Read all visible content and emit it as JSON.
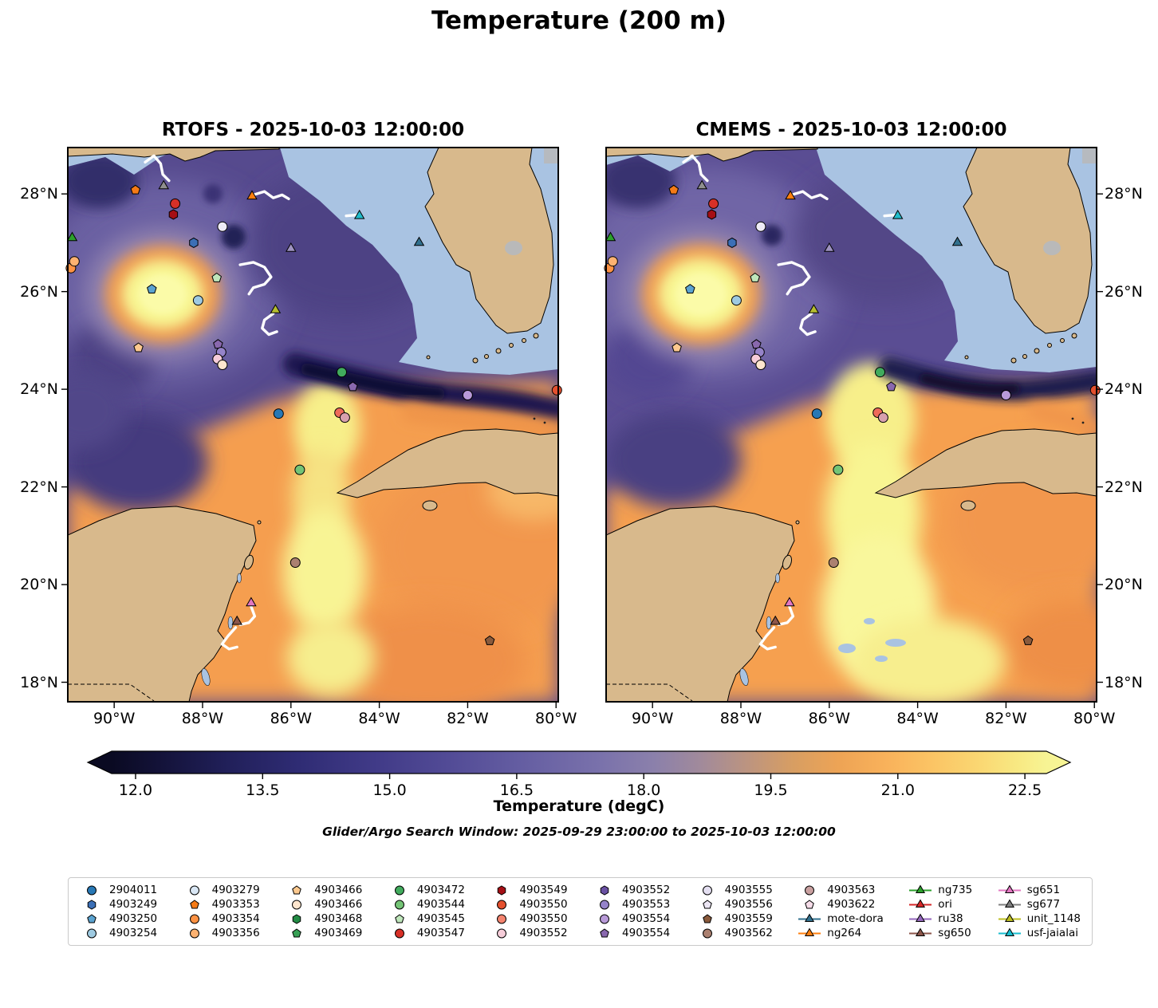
{
  "title": "Temperature (200 m)",
  "panels": [
    {
      "id": "rtofs",
      "title": "RTOFS - 2025-10-03 12:00:00"
    },
    {
      "id": "cmems",
      "title": "CMEMS - 2025-10-03 12:00:00"
    }
  ],
  "axes": {
    "lat_labels": [
      "28°N",
      "26°N",
      "24°N",
      "22°N",
      "20°N",
      "18°N"
    ],
    "lat_values": [
      28,
      26,
      24,
      22,
      20,
      18
    ],
    "lon_labels": [
      "90°W",
      "88°W",
      "86°W",
      "84°W",
      "82°W",
      "80°W"
    ],
    "lon_values": [
      -90,
      -88,
      -86,
      -84,
      -82,
      -80
    ]
  },
  "colorbar": {
    "label": "Temperature (degC)",
    "tick_labels": [
      "12.0",
      "13.5",
      "15.0",
      "16.5",
      "18.0",
      "19.5",
      "21.0",
      "22.5"
    ],
    "tick_values": [
      12,
      13.5,
      15,
      16.5,
      18,
      19.5,
      21,
      22.5
    ],
    "min": 12,
    "max": 22.5
  },
  "search_window": "Glider/Argo Search Window: 2025-09-29 23:00:00 to 2025-10-03 12:00:00",
  "map_colors": {
    "land": "#d8b98c",
    "masked_ocean": "#a9c3e2",
    "lake": "#b9b9b9",
    "glider_track": "#ffffff",
    "cold": "#10102e",
    "mid": "#6f68a6",
    "warm": "#f5a055",
    "hot": "#f7f494"
  },
  "legend": [
    {
      "label": "2904011",
      "shape": "circle",
      "color": "#2878b5"
    },
    {
      "label": "4903249",
      "shape": "hexagon",
      "color": "#3b6fb6"
    },
    {
      "label": "4903250",
      "shape": "pentagon",
      "color": "#5ba3d0"
    },
    {
      "label": "4903254",
      "shape": "circle",
      "color": "#9ecae1"
    },
    {
      "label": "4903279",
      "shape": "circle",
      "color": "#d9e7f5"
    },
    {
      "label": "4903353",
      "shape": "pentagon",
      "color": "#f57b17"
    },
    {
      "label": "4903354",
      "shape": "circle",
      "color": "#fd9243"
    },
    {
      "label": "4903356",
      "shape": "circle",
      "color": "#fdb271"
    },
    {
      "label": "4903466",
      "shape": "pentagon",
      "color": "#fdc98f"
    },
    {
      "label": "4903466",
      "shape": "circle",
      "color": "#fee6ce"
    },
    {
      "label": "4903468",
      "shape": "hexagon",
      "color": "#238b45"
    },
    {
      "label": "4903469",
      "shape": "pentagon",
      "color": "#37a055"
    },
    {
      "label": "4903472",
      "shape": "circle",
      "color": "#41ab5d"
    },
    {
      "label": "4903544",
      "shape": "circle",
      "color": "#74c476"
    },
    {
      "label": "4903545",
      "shape": "pentagon",
      "color": "#bfe6bb"
    },
    {
      "label": "4903547",
      "shape": "circle",
      "color": "#d73027"
    },
    {
      "label": "4903549",
      "shape": "hexagon",
      "color": "#a50f15"
    },
    {
      "label": "4903550",
      "shape": "circle",
      "color": "#e4502e"
    },
    {
      "label": "4903550",
      "shape": "circle",
      "color": "#f4846f"
    },
    {
      "label": "4903552",
      "shape": "circle",
      "color": "#f6cdd9"
    },
    {
      "label": "4903552",
      "shape": "hexagon",
      "color": "#6a51a3"
    },
    {
      "label": "4903553",
      "shape": "circle",
      "color": "#9583c9"
    },
    {
      "label": "4903554",
      "shape": "circle",
      "color": "#b89ad8"
    },
    {
      "label": "4903554",
      "shape": "pentagon",
      "color": "#8968ae"
    },
    {
      "label": "4903555",
      "shape": "circle",
      "color": "#e4dff1"
    },
    {
      "label": "4903556",
      "shape": "pentagon",
      "color": "#ece6f4"
    },
    {
      "label": "4903559",
      "shape": "pentagon",
      "color": "#8a5a3c"
    },
    {
      "label": "4903562",
      "shape": "circle",
      "color": "#ab8070"
    },
    {
      "label": "4903563",
      "shape": "circle",
      "color": "#c9a0a0"
    },
    {
      "label": "4903622",
      "shape": "pentagon",
      "color": "#f6dde9"
    },
    {
      "label": "mote-dora",
      "shape": "triangle-line",
      "color": "#31708e"
    },
    {
      "label": "ng264",
      "shape": "triangle-line",
      "color": "#ff7f0e"
    },
    {
      "label": "ng735",
      "shape": "triangle-line",
      "color": "#2ca02c"
    },
    {
      "label": "ori",
      "shape": "triangle-line",
      "color": "#d62728"
    },
    {
      "label": "ru38",
      "shape": "triangle-line",
      "color": "#9467bd"
    },
    {
      "label": "sg650",
      "shape": "triangle-line",
      "color": "#8c564b"
    },
    {
      "label": "sg651",
      "shape": "triangle-line",
      "color": "#e377c2"
    },
    {
      "label": "sg677",
      "shape": "triangle-line",
      "color": "#7f7f7f"
    },
    {
      "label": "unit_1148",
      "shape": "triangle-line",
      "color": "#bcbd22"
    },
    {
      "label": "usf-jaialai",
      "shape": "triangle-line",
      "color": "#17becf"
    }
  ],
  "chart_data": {
    "type": "heatmap",
    "variable": "Temperature",
    "depth": "200 m",
    "units": "degC",
    "value_range": [
      12,
      22.5
    ],
    "extent": {
      "lon": [
        -91.05,
        -79.95
      ],
      "lat": [
        17.6,
        28.95
      ]
    },
    "panels": [
      "RTOFS - 2025-10-03 12:00:00",
      "CMEMS - 2025-10-03 12:00:00"
    ],
    "features": [
      "warm eddy ~22.5 degC centered near 88.9W 26N in both models",
      "cold band ~12-13 degC along Florida Straits near 24N from 86W to 80W",
      "warm tongue ~21-22.5 degC through Yucatan Channel toward central Gulf",
      "cool purple water ~14-16 degC over northern and western Gulf"
    ],
    "markers": [
      {
        "label": "4903353",
        "shape": "pentagon",
        "color": "#f57b17",
        "lon": -89.52,
        "lat": 28.08
      },
      {
        "label": "sg677",
        "shape": "triangle",
        "color": "#8f8f8f",
        "lon": -88.88,
        "lat": 28.16
      },
      {
        "label": "4903547",
        "shape": "circle",
        "color": "#d73027",
        "lon": -88.62,
        "lat": 27.8
      },
      {
        "label": "4903549",
        "shape": "hexagon",
        "color": "#a50f15",
        "lon": -88.66,
        "lat": 27.58
      },
      {
        "label": "ng264",
        "shape": "triangle",
        "color": "#ff7f0e",
        "lon": -86.88,
        "lat": 27.95
      },
      {
        "label": "usf-jaialai",
        "shape": "triangle",
        "color": "#22bccb",
        "lon": -84.45,
        "lat": 27.55
      },
      {
        "label": "4903555",
        "shape": "circle",
        "color": "#eeebf6",
        "lon": -87.55,
        "lat": 27.33
      },
      {
        "label": "ng735",
        "shape": "triangle",
        "color": "#2ca02c",
        "lon": -90.95,
        "lat": 27.1
      },
      {
        "label": "4903249",
        "shape": "hexagon",
        "color": "#3b6fb6",
        "lon": -88.2,
        "lat": 27.0
      },
      {
        "label": "ru38",
        "shape": "triangle",
        "color": "#9e93c0",
        "lon": -86.0,
        "lat": 26.88
      },
      {
        "label": "mote-dora",
        "shape": "triangle",
        "color": "#31708e",
        "lon": -83.1,
        "lat": 27.0
      },
      {
        "label": "4903354",
        "shape": "circle",
        "color": "#fd9243",
        "lon": -90.98,
        "lat": 26.48
      },
      {
        "label": "4903356",
        "shape": "circle",
        "color": "#fdb271",
        "lon": -90.9,
        "lat": 26.62
      },
      {
        "label": "4903545",
        "shape": "pentagon",
        "color": "#bfe6bb",
        "lon": -87.68,
        "lat": 26.28
      },
      {
        "label": "4903250",
        "shape": "pentagon",
        "color": "#5ba3d0",
        "lon": -89.15,
        "lat": 26.05
      },
      {
        "label": "4903254",
        "shape": "circle",
        "color": "#9ecae1",
        "lon": -88.1,
        "lat": 25.82
      },
      {
        "label": "unit_1148",
        "shape": "triangle",
        "color": "#b5bd2f",
        "lon": -86.35,
        "lat": 25.62
      },
      {
        "label": "4903466",
        "shape": "pentagon",
        "color": "#fdc98f",
        "lon": -89.45,
        "lat": 24.85
      },
      {
        "label": "4903554",
        "shape": "pentagon",
        "color": "#8968ae",
        "lon": -87.65,
        "lat": 24.92
      },
      {
        "label": "4903553",
        "shape": "circle",
        "color": "#9583c9",
        "lon": -87.58,
        "lat": 24.76
      },
      {
        "label": "4903552",
        "shape": "circle",
        "color": "#f6cdd9",
        "lon": -87.66,
        "lat": 24.62
      },
      {
        "label": "4903466",
        "shape": "circle",
        "color": "#fee6ce",
        "lon": -87.55,
        "lat": 24.5
      },
      {
        "label": "4903472",
        "shape": "circle",
        "color": "#41ab5d",
        "lon": -84.85,
        "lat": 24.35
      },
      {
        "label": "4903554",
        "shape": "pentagon",
        "color": "#8968ae",
        "lon": -84.6,
        "lat": 24.05
      },
      {
        "label": "2904011",
        "shape": "circle",
        "color": "#2878b5",
        "lon": -86.28,
        "lat": 23.5
      },
      {
        "label": "4903550",
        "shape": "circle",
        "color": "#ef6a5a",
        "lon": -84.9,
        "lat": 23.52
      },
      {
        "label": "4903563",
        "shape": "circle",
        "color": "#d8a0ae",
        "lon": -84.78,
        "lat": 23.42
      },
      {
        "label": "4903554",
        "shape": "circle",
        "color": "#b89ad8",
        "lon": -82.0,
        "lat": 23.88
      },
      {
        "label": "4903550",
        "shape": "circle",
        "color": "#e4502e",
        "lon": -79.98,
        "lat": 23.98
      },
      {
        "label": "4903544",
        "shape": "circle",
        "color": "#74c476",
        "lon": -85.8,
        "lat": 22.35
      },
      {
        "label": "4903562",
        "shape": "circle",
        "color": "#ab8070",
        "lon": -85.9,
        "lat": 20.45
      },
      {
        "label": "sg651",
        "shape": "triangle",
        "color": "#e377c2",
        "lon": -86.9,
        "lat": 19.62
      },
      {
        "label": "sg650",
        "shape": "triangle",
        "color": "#8c564b",
        "lon": -87.22,
        "lat": 19.24
      },
      {
        "label": "4903559",
        "shape": "pentagon",
        "color": "#8a5a3c",
        "lon": -81.5,
        "lat": 18.85
      }
    ],
    "glider_tracks": [
      {
        "name": "sg677",
        "points": [
          [
            -89.3,
            28.65
          ],
          [
            -89.1,
            28.78
          ],
          [
            -88.95,
            28.62
          ],
          [
            -88.9,
            28.4
          ],
          [
            -88.76,
            28.27
          ]
        ]
      },
      {
        "name": "ng264",
        "points": [
          [
            -86.85,
            27.98
          ],
          [
            -86.6,
            28.05
          ],
          [
            -86.4,
            27.92
          ],
          [
            -86.2,
            27.98
          ],
          [
            -86.05,
            27.9
          ]
        ]
      },
      {
        "name": "ru38",
        "points": [
          [
            -87.15,
            26.55
          ],
          [
            -86.85,
            26.6
          ],
          [
            -86.6,
            26.5
          ],
          [
            -86.45,
            26.3
          ],
          [
            -86.6,
            26.15
          ],
          [
            -86.85,
            26.08
          ],
          [
            -86.95,
            25.95
          ]
        ]
      },
      {
        "name": "unit_1148",
        "points": [
          [
            -86.4,
            25.55
          ],
          [
            -86.6,
            25.42
          ],
          [
            -86.65,
            25.25
          ],
          [
            -86.5,
            25.12
          ],
          [
            -86.32,
            25.18
          ]
        ]
      },
      {
        "name": "usf-jaialai",
        "points": [
          [
            -84.75,
            27.55
          ],
          [
            -84.5,
            27.57
          ]
        ]
      },
      {
        "name": "sg651",
        "points": [
          [
            -86.9,
            19.55
          ],
          [
            -86.82,
            19.35
          ],
          [
            -86.95,
            19.22
          ],
          [
            -87.15,
            19.18
          ]
        ]
      },
      {
        "name": "sg650",
        "points": [
          [
            -87.25,
            19.12
          ],
          [
            -87.42,
            18.95
          ],
          [
            -87.56,
            18.78
          ],
          [
            -87.4,
            18.68
          ],
          [
            -87.22,
            18.72
          ]
        ]
      }
    ]
  }
}
